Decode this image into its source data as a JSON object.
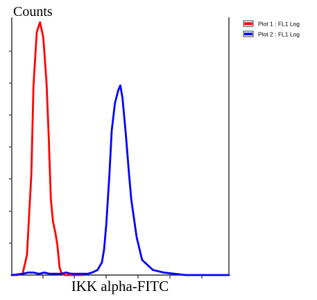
{
  "chart_data": {
    "type": "line",
    "title": "",
    "xlabel": "IKK alpha-FITC",
    "ylabel": "Counts",
    "xscale": "log",
    "xlim": [
      0,
      10
    ],
    "ylim": [
      0,
      100
    ],
    "grid": false,
    "legend_position": "top-right",
    "series": [
      {
        "name": "Plot 1 : FL1 Log",
        "color": "#ff0000",
        "x": [
          0,
          0.5,
          1.0,
          1.4,
          1.8,
          2.0,
          2.3,
          2.6,
          2.9,
          3.2,
          3.4,
          3.6,
          3.8,
          4.0,
          4.2,
          4.4,
          4.6,
          4.9,
          5.2,
          5.5,
          5.8,
          6.1,
          6.4,
          6.6
        ],
        "y": [
          0,
          0,
          0.5,
          8,
          40,
          75,
          96,
          100,
          94,
          76,
          55,
          30,
          21,
          17,
          12,
          3,
          0.5,
          0,
          0,
          0,
          0,
          0,
          0,
          0
        ]
      },
      {
        "name": "Plot 2 : FL1 Log",
        "color": "#0000ff",
        "x": [
          0,
          1.0,
          1.5,
          2.0,
          2.5,
          3.0,
          3.5,
          4.0,
          4.5,
          5.0,
          5.5,
          6.0,
          6.5,
          7.0,
          7.4,
          7.9,
          8.3,
          8.5,
          8.7,
          9.0,
          9.2,
          9.5,
          9.8,
          10.0,
          10.2,
          10.5,
          10.8,
          11.0,
          11.5,
          12.0,
          13.0,
          14.0,
          15.0,
          16.0,
          17.0,
          18.0,
          19.0,
          20.0
        ],
        "y": [
          0,
          0.5,
          1,
          1,
          0.5,
          1,
          0.5,
          0.5,
          0.5,
          1,
          0.5,
          0.5,
          0.5,
          0.5,
          1,
          2,
          5,
          10,
          20,
          40,
          57,
          68,
          73,
          75,
          70,
          56,
          40,
          30,
          15,
          6,
          2,
          1,
          0.5,
          0,
          0,
          0,
          0,
          0
        ]
      }
    ]
  }
}
